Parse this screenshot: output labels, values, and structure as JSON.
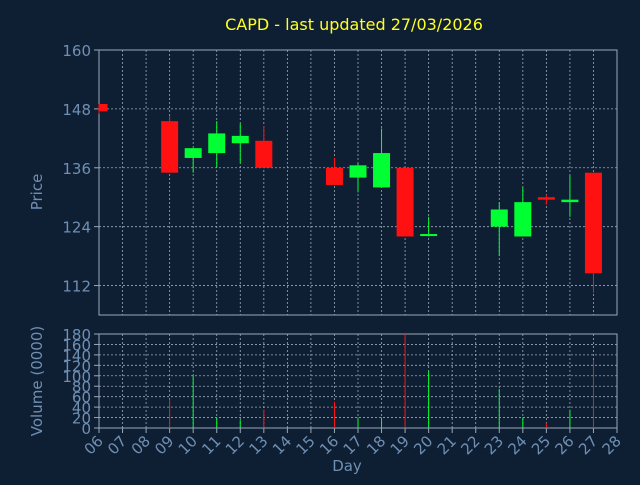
{
  "chart_data": {
    "type": "candlestick",
    "title": "CAPD - last updated 27/03/2026",
    "xlabel": "Day",
    "price_panel": {
      "ylabel": "Price",
      "yticks": [
        112,
        124,
        136,
        148,
        160
      ],
      "ylim": [
        106,
        160
      ],
      "grid": true
    },
    "volume_panel": {
      "ylabel": "Volume (0000)",
      "yticks": [
        0,
        20,
        40,
        60,
        80,
        100,
        120,
        140,
        160,
        180
      ],
      "ylim": [
        0,
        180
      ],
      "grid": true
    },
    "x_ticks": [
      "06",
      "07",
      "08",
      "09",
      "10",
      "11",
      "12",
      "13",
      "14",
      "15",
      "16",
      "17",
      "18",
      "19",
      "20",
      "21",
      "22",
      "23",
      "24",
      "25",
      "26",
      "27",
      "28"
    ],
    "colors": {
      "background": "#0f1f33",
      "up": "#00ff33",
      "down": "#ff1111",
      "grid": "#9aa8b8",
      "axis_text": "#6f8fb3",
      "title_text": "#ffff22"
    },
    "candles": [
      {
        "day": "06",
        "open": 149,
        "high": 149,
        "low": 147,
        "close": 147.5,
        "volume": 0
      },
      {
        "day": "09",
        "open": 145.5,
        "high": 146.5,
        "low": 135,
        "close": 135,
        "volume": 55
      },
      {
        "day": "10",
        "open": 138,
        "high": 140,
        "low": 135,
        "close": 140,
        "volume": 100
      },
      {
        "day": "11",
        "open": 139,
        "high": 145.5,
        "low": 136,
        "close": 143,
        "volume": 20
      },
      {
        "day": "12",
        "open": 141,
        "high": 145,
        "low": 137,
        "close": 142.5,
        "volume": 15
      },
      {
        "day": "13",
        "open": 141.5,
        "high": 144.5,
        "low": 136,
        "close": 136,
        "volume": 35
      },
      {
        "day": "16",
        "open": 136,
        "high": 138,
        "low": 132.5,
        "close": 132.5,
        "volume": 50
      },
      {
        "day": "17",
        "open": 134,
        "high": 137,
        "low": 131,
        "close": 136.5,
        "volume": 20
      },
      {
        "day": "18",
        "open": 132,
        "high": 144,
        "low": 132,
        "close": 139,
        "volume": 20
      },
      {
        "day": "19",
        "open": 136,
        "high": 136,
        "low": 122,
        "close": 122,
        "volume": 180
      },
      {
        "day": "20",
        "open": 122.5,
        "high": 126,
        "low": 122,
        "close": 122.5,
        "volume": 110
      },
      {
        "day": "23",
        "open": 124,
        "high": 129,
        "low": 118,
        "close": 127.5,
        "volume": 75
      },
      {
        "day": "24",
        "open": 122,
        "high": 132,
        "low": 122,
        "close": 129,
        "volume": 20
      },
      {
        "day": "25",
        "open": 130,
        "high": 130.5,
        "low": 128.5,
        "close": 129.5,
        "volume": 10
      },
      {
        "day": "26",
        "open": 129,
        "high": 134.5,
        "low": 126,
        "close": 129.5,
        "volume": 35
      },
      {
        "day": "27",
        "open": 135,
        "high": 135,
        "low": 110.5,
        "close": 114.5,
        "volume": 130
      }
    ]
  }
}
